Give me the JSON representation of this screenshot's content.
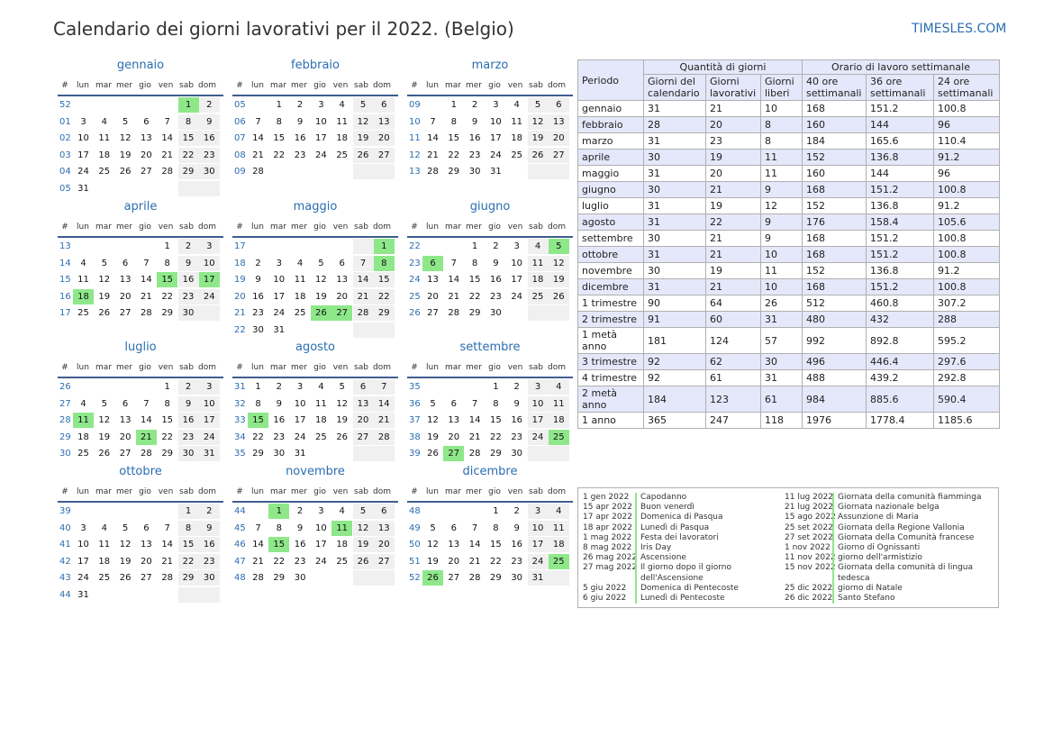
{
  "title": "Calendario dei giorni lavorativi per il 2022. (Belgio)",
  "site": "TIMESLES.COM",
  "colors": {
    "accent": "#2a6eb0",
    "holiday": "#8ee88a",
    "weekend": "#f0f0f0",
    "table_header": "#e5e8fa",
    "rule": "#3e5d8f"
  },
  "weekday_headers": [
    "#",
    "lun",
    "mar",
    "mer",
    "gio",
    "ven",
    "sab",
    "dom"
  ],
  "months": [
    {
      "name": "gennaio",
      "weeks": [
        {
          "wk": "52",
          "days": [
            "",
            "",
            "",
            "",
            "",
            "1",
            "2"
          ]
        },
        {
          "wk": "01",
          "days": [
            "3",
            "4",
            "5",
            "6",
            "7",
            "8",
            "9"
          ]
        },
        {
          "wk": "02",
          "days": [
            "10",
            "11",
            "12",
            "13",
            "14",
            "15",
            "16"
          ]
        },
        {
          "wk": "03",
          "days": [
            "17",
            "18",
            "19",
            "20",
            "21",
            "22",
            "23"
          ]
        },
        {
          "wk": "04",
          "days": [
            "24",
            "25",
            "26",
            "27",
            "28",
            "29",
            "30"
          ]
        },
        {
          "wk": "05",
          "days": [
            "31",
            "",
            "",
            "",
            "",
            "",
            ""
          ]
        }
      ],
      "holidays": [
        "1"
      ]
    },
    {
      "name": "febbraio",
      "weeks": [
        {
          "wk": "05",
          "days": [
            "",
            "1",
            "2",
            "3",
            "4",
            "5",
            "6"
          ]
        },
        {
          "wk": "06",
          "days": [
            "7",
            "8",
            "9",
            "10",
            "11",
            "12",
            "13"
          ]
        },
        {
          "wk": "07",
          "days": [
            "14",
            "15",
            "16",
            "17",
            "18",
            "19",
            "20"
          ]
        },
        {
          "wk": "08",
          "days": [
            "21",
            "22",
            "23",
            "24",
            "25",
            "26",
            "27"
          ]
        },
        {
          "wk": "09",
          "days": [
            "28",
            "",
            "",
            "",
            "",
            "",
            ""
          ]
        }
      ],
      "holidays": []
    },
    {
      "name": "marzo",
      "weeks": [
        {
          "wk": "09",
          "days": [
            "",
            "1",
            "2",
            "3",
            "4",
            "5",
            "6"
          ]
        },
        {
          "wk": "10",
          "days": [
            "7",
            "8",
            "9",
            "10",
            "11",
            "12",
            "13"
          ]
        },
        {
          "wk": "11",
          "days": [
            "14",
            "15",
            "16",
            "17",
            "18",
            "19",
            "20"
          ]
        },
        {
          "wk": "12",
          "days": [
            "21",
            "22",
            "23",
            "24",
            "25",
            "26",
            "27"
          ]
        },
        {
          "wk": "13",
          "days": [
            "28",
            "29",
            "30",
            "31",
            "",
            "",
            ""
          ]
        }
      ],
      "holidays": []
    },
    {
      "name": "aprile",
      "weeks": [
        {
          "wk": "13",
          "days": [
            "",
            "",
            "",
            "",
            "1",
            "2",
            "3"
          ]
        },
        {
          "wk": "14",
          "days": [
            "4",
            "5",
            "6",
            "7",
            "8",
            "9",
            "10"
          ]
        },
        {
          "wk": "15",
          "days": [
            "11",
            "12",
            "13",
            "14",
            "15",
            "16",
            "17"
          ]
        },
        {
          "wk": "16",
          "days": [
            "18",
            "19",
            "20",
            "21",
            "22",
            "23",
            "24"
          ]
        },
        {
          "wk": "17",
          "days": [
            "25",
            "26",
            "27",
            "28",
            "29",
            "30",
            ""
          ]
        }
      ],
      "holidays": [
        "15",
        "17",
        "18"
      ]
    },
    {
      "name": "maggio",
      "weeks": [
        {
          "wk": "17",
          "days": [
            "",
            "",
            "",
            "",
            "",
            "",
            "1"
          ]
        },
        {
          "wk": "18",
          "days": [
            "2",
            "3",
            "4",
            "5",
            "6",
            "7",
            "8"
          ]
        },
        {
          "wk": "19",
          "days": [
            "9",
            "10",
            "11",
            "12",
            "13",
            "14",
            "15"
          ]
        },
        {
          "wk": "20",
          "days": [
            "16",
            "17",
            "18",
            "19",
            "20",
            "21",
            "22"
          ]
        },
        {
          "wk": "21",
          "days": [
            "23",
            "24",
            "25",
            "26",
            "27",
            "28",
            "29"
          ]
        },
        {
          "wk": "22",
          "days": [
            "30",
            "31",
            "",
            "",
            "",
            "",
            ""
          ]
        }
      ],
      "holidays": [
        "1",
        "8",
        "26",
        "27"
      ]
    },
    {
      "name": "giugno",
      "weeks": [
        {
          "wk": "22",
          "days": [
            "",
            "",
            "1",
            "2",
            "3",
            "4",
            "5"
          ]
        },
        {
          "wk": "23",
          "days": [
            "6",
            "7",
            "8",
            "9",
            "10",
            "11",
            "12"
          ]
        },
        {
          "wk": "24",
          "days": [
            "13",
            "14",
            "15",
            "16",
            "17",
            "18",
            "19"
          ]
        },
        {
          "wk": "25",
          "days": [
            "20",
            "21",
            "22",
            "23",
            "24",
            "25",
            "26"
          ]
        },
        {
          "wk": "26",
          "days": [
            "27",
            "28",
            "29",
            "30",
            "",
            "",
            ""
          ]
        }
      ],
      "holidays": [
        "5",
        "6"
      ]
    },
    {
      "name": "luglio",
      "weeks": [
        {
          "wk": "26",
          "days": [
            "",
            "",
            "",
            "",
            "1",
            "2",
            "3"
          ]
        },
        {
          "wk": "27",
          "days": [
            "4",
            "5",
            "6",
            "7",
            "8",
            "9",
            "10"
          ]
        },
        {
          "wk": "28",
          "days": [
            "11",
            "12",
            "13",
            "14",
            "15",
            "16",
            "17"
          ]
        },
        {
          "wk": "29",
          "days": [
            "18",
            "19",
            "20",
            "21",
            "22",
            "23",
            "24"
          ]
        },
        {
          "wk": "30",
          "days": [
            "25",
            "26",
            "27",
            "28",
            "29",
            "30",
            "31"
          ]
        }
      ],
      "holidays": [
        "11",
        "21"
      ]
    },
    {
      "name": "agosto",
      "weeks": [
        {
          "wk": "31",
          "days": [
            "1",
            "2",
            "3",
            "4",
            "5",
            "6",
            "7"
          ]
        },
        {
          "wk": "32",
          "days": [
            "8",
            "9",
            "10",
            "11",
            "12",
            "13",
            "14"
          ]
        },
        {
          "wk": "33",
          "days": [
            "15",
            "16",
            "17",
            "18",
            "19",
            "20",
            "21"
          ]
        },
        {
          "wk": "34",
          "days": [
            "22",
            "23",
            "24",
            "25",
            "26",
            "27",
            "28"
          ]
        },
        {
          "wk": "35",
          "days": [
            "29",
            "30",
            "31",
            "",
            "",
            "",
            ""
          ]
        }
      ],
      "holidays": [
        "15"
      ]
    },
    {
      "name": "settembre",
      "weeks": [
        {
          "wk": "35",
          "days": [
            "",
            "",
            "",
            "1",
            "2",
            "3",
            "4"
          ]
        },
        {
          "wk": "36",
          "days": [
            "5",
            "6",
            "7",
            "8",
            "9",
            "10",
            "11"
          ]
        },
        {
          "wk": "37",
          "days": [
            "12",
            "13",
            "14",
            "15",
            "16",
            "17",
            "18"
          ]
        },
        {
          "wk": "38",
          "days": [
            "19",
            "20",
            "21",
            "22",
            "23",
            "24",
            "25"
          ]
        },
        {
          "wk": "39",
          "days": [
            "26",
            "27",
            "28",
            "29",
            "30",
            "",
            ""
          ]
        }
      ],
      "holidays": [
        "25",
        "27"
      ]
    },
    {
      "name": "ottobre",
      "weeks": [
        {
          "wk": "39",
          "days": [
            "",
            "",
            "",
            "",
            "",
            "1",
            "2"
          ]
        },
        {
          "wk": "40",
          "days": [
            "3",
            "4",
            "5",
            "6",
            "7",
            "8",
            "9"
          ]
        },
        {
          "wk": "41",
          "days": [
            "10",
            "11",
            "12",
            "13",
            "14",
            "15",
            "16"
          ]
        },
        {
          "wk": "42",
          "days": [
            "17",
            "18",
            "19",
            "20",
            "21",
            "22",
            "23"
          ]
        },
        {
          "wk": "43",
          "days": [
            "24",
            "25",
            "26",
            "27",
            "28",
            "29",
            "30"
          ]
        },
        {
          "wk": "44",
          "days": [
            "31",
            "",
            "",
            "",
            "",
            "",
            ""
          ]
        }
      ],
      "holidays": []
    },
    {
      "name": "novembre",
      "weeks": [
        {
          "wk": "44",
          "days": [
            "",
            "1",
            "2",
            "3",
            "4",
            "5",
            "6"
          ]
        },
        {
          "wk": "45",
          "days": [
            "7",
            "8",
            "9",
            "10",
            "11",
            "12",
            "13"
          ]
        },
        {
          "wk": "46",
          "days": [
            "14",
            "15",
            "16",
            "17",
            "18",
            "19",
            "20"
          ]
        },
        {
          "wk": "47",
          "days": [
            "21",
            "22",
            "23",
            "24",
            "25",
            "26",
            "27"
          ]
        },
        {
          "wk": "48",
          "days": [
            "28",
            "29",
            "30",
            "",
            "",
            "",
            ""
          ]
        }
      ],
      "holidays": [
        "1",
        "11",
        "15"
      ]
    },
    {
      "name": "dicembre",
      "weeks": [
        {
          "wk": "48",
          "days": [
            "",
            "",
            "",
            "1",
            "2",
            "3",
            "4"
          ]
        },
        {
          "wk": "49",
          "days": [
            "5",
            "6",
            "7",
            "8",
            "9",
            "10",
            "11"
          ]
        },
        {
          "wk": "50",
          "days": [
            "12",
            "13",
            "14",
            "15",
            "16",
            "17",
            "18"
          ]
        },
        {
          "wk": "51",
          "days": [
            "19",
            "20",
            "21",
            "22",
            "23",
            "24",
            "25"
          ]
        },
        {
          "wk": "52",
          "days": [
            "26",
            "27",
            "28",
            "29",
            "30",
            "31",
            ""
          ]
        }
      ],
      "holidays": [
        "25",
        "26"
      ]
    }
  ],
  "summary": {
    "periodo_label": "Periodo",
    "group_days": "Quantità di giorni",
    "group_hours": "Orario di lavoro settimanale",
    "cols": [
      "Giorni del calendario",
      "Giorni lavorativi",
      "Giorni liberi",
      "40 ore settimanali",
      "36 ore settimanali",
      "24 ore settimanali"
    ],
    "rows": [
      [
        "gennaio",
        "31",
        "21",
        "10",
        "168",
        "151.2",
        "100.8"
      ],
      [
        "febbraio",
        "28",
        "20",
        "8",
        "160",
        "144",
        "96"
      ],
      [
        "marzo",
        "31",
        "23",
        "8",
        "184",
        "165.6",
        "110.4"
      ],
      [
        "aprile",
        "30",
        "19",
        "11",
        "152",
        "136.8",
        "91.2"
      ],
      [
        "maggio",
        "31",
        "20",
        "11",
        "160",
        "144",
        "96"
      ],
      [
        "giugno",
        "30",
        "21",
        "9",
        "168",
        "151.2",
        "100.8"
      ],
      [
        "luglio",
        "31",
        "19",
        "12",
        "152",
        "136.8",
        "91.2"
      ],
      [
        "agosto",
        "31",
        "22",
        "9",
        "176",
        "158.4",
        "105.6"
      ],
      [
        "settembre",
        "30",
        "21",
        "9",
        "168",
        "151.2",
        "100.8"
      ],
      [
        "ottobre",
        "31",
        "21",
        "10",
        "168",
        "151.2",
        "100.8"
      ],
      [
        "novembre",
        "30",
        "19",
        "11",
        "152",
        "136.8",
        "91.2"
      ],
      [
        "dicembre",
        "31",
        "21",
        "10",
        "168",
        "151.2",
        "100.8"
      ],
      [
        "1 trimestre",
        "90",
        "64",
        "26",
        "512",
        "460.8",
        "307.2"
      ],
      [
        "2 trimestre",
        "91",
        "60",
        "31",
        "480",
        "432",
        "288"
      ],
      [
        "1 metà anno",
        "181",
        "124",
        "57",
        "992",
        "892.8",
        "595.2"
      ],
      [
        "3 trimestre",
        "92",
        "62",
        "30",
        "496",
        "446.4",
        "297.6"
      ],
      [
        "4 trimestre",
        "92",
        "61",
        "31",
        "488",
        "439.2",
        "292.8"
      ],
      [
        "2 metà anno",
        "184",
        "123",
        "61",
        "984",
        "885.6",
        "590.4"
      ],
      [
        "1 anno",
        "365",
        "247",
        "118",
        "1976",
        "1778.4",
        "1185.6"
      ]
    ]
  },
  "holidays_list": {
    "left": [
      {
        "date": "1 gen 2022",
        "name": "Capodanno"
      },
      {
        "date": "15 apr 2022",
        "name": "Buon venerdì"
      },
      {
        "date": "17 apr 2022",
        "name": "Domenica di Pasqua"
      },
      {
        "date": "18 apr 2022",
        "name": "Lunedì di Pasqua"
      },
      {
        "date": "1 mag 2022",
        "name": "Festa dei lavoratori"
      },
      {
        "date": "8 mag 2022",
        "name": "Iris Day"
      },
      {
        "date": "26 mag 2022",
        "name": "Ascensione"
      },
      {
        "date": "27 mag 2022",
        "name": "Il giorno dopo il giorno dell'Ascensione"
      },
      {
        "date": "5 giu 2022",
        "name": "Domenica di Pentecoste"
      },
      {
        "date": "6 giu 2022",
        "name": "Lunedì di Pentecoste"
      }
    ],
    "right": [
      {
        "date": "11 lug 2022",
        "name": "Giornata della comunità fiamminga"
      },
      {
        "date": "21 lug 2022",
        "name": "Giornata nazionale belga"
      },
      {
        "date": "15 ago 2022",
        "name": "Assunzione di Maria"
      },
      {
        "date": "25 set 2022",
        "name": "Giornata della Regione Vallonia"
      },
      {
        "date": "27 set 2022",
        "name": "Giornata della Comunità francese"
      },
      {
        "date": "1 nov 2022",
        "name": "Giorno di Ognissanti"
      },
      {
        "date": "11 nov 2022",
        "name": "giorno dell'armistizio"
      },
      {
        "date": "15 nov 2022",
        "name": "Giornata della comunità di lingua tedesca"
      },
      {
        "date": "25 dic 2022",
        "name": "giorno di Natale"
      },
      {
        "date": "26 dic 2022",
        "name": "Santo Stefano"
      }
    ]
  }
}
